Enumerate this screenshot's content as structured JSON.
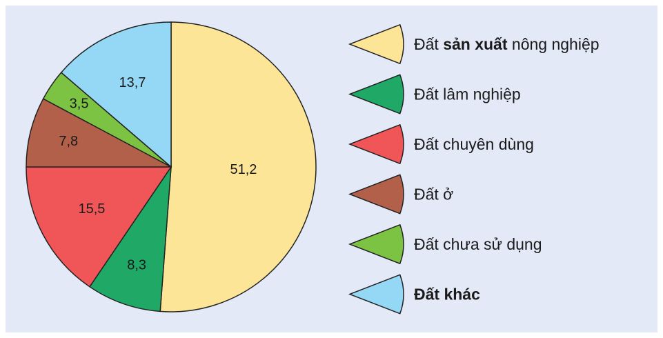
{
  "chart_data": {
    "type": "pie",
    "categories": [
      "Đất sản xuất nông nghiệp",
      "Đất lâm nghiệp",
      "Đất chuyên dùng",
      "Đất ở",
      "Đất chưa sử dụng",
      "Đất khác"
    ],
    "values": [
      51.2,
      8.3,
      15.5,
      7.8,
      3.5,
      13.7
    ],
    "value_labels": [
      "51,2",
      "8,3",
      "15,5",
      "7,8",
      "3,5",
      "13,7"
    ],
    "colors": [
      "#fde598",
      "#1fa866",
      "#f05658",
      "#b3604a",
      "#7cc243",
      "#94d8f6"
    ],
    "start_angle": "12 o'clock",
    "direction": "clockwise",
    "legend_position": "right"
  },
  "legend": [
    {
      "parts": [
        {
          "text": "Đất ",
          "bold": false
        },
        {
          "text": "sản xuất",
          "bold": true
        },
        {
          "text": " nông nghiệp",
          "bold": false
        }
      ]
    },
    {
      "parts": [
        {
          "text": "Đất lâm nghiệp",
          "bold": false
        }
      ]
    },
    {
      "parts": [
        {
          "text": "Đất chuyên dùng",
          "bold": false
        }
      ]
    },
    {
      "parts": [
        {
          "text": "Đất ở",
          "bold": false
        }
      ]
    },
    {
      "parts": [
        {
          "text": "Đất chưa sử dụng",
          "bold": false
        }
      ]
    },
    {
      "parts": [
        {
          "text": "Đất khác",
          "bold": true
        }
      ]
    }
  ]
}
